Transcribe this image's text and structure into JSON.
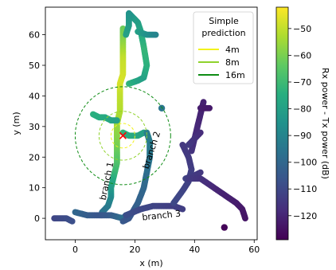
{
  "chart_data": {
    "type": "scatter",
    "title": "",
    "xlabel": "x (m)",
    "ylabel": "y (m)",
    "xlim": [
      -10,
      61
    ],
    "ylim": [
      -7,
      69
    ],
    "xticks": [
      0,
      20,
      40,
      60
    ],
    "yticks": [
      0,
      10,
      20,
      30,
      40,
      50,
      60
    ],
    "colorbar": {
      "label": "Rx power - Tx power (dB)",
      "range": [
        -129,
        -42
      ],
      "ticks": [
        -50,
        -60,
        -70,
        -80,
        -90,
        -100,
        -110,
        -120
      ],
      "colormap": "viridis"
    },
    "trajectories": [
      {
        "points": [
          [
            16,
            62,
            -62
          ],
          [
            16,
            57,
            -57
          ],
          [
            16,
            52,
            -50
          ],
          [
            16,
            47,
            -48
          ],
          [
            15,
            44,
            -47
          ],
          [
            15,
            40,
            -50
          ],
          [
            15,
            35,
            -52
          ],
          [
            14,
            31,
            -55
          ],
          [
            14,
            26,
            -58
          ],
          [
            14,
            22,
            -62
          ],
          [
            14,
            18,
            -66
          ],
          [
            13,
            14,
            -72
          ],
          [
            12,
            10,
            -80
          ],
          [
            12,
            7,
            -86
          ],
          [
            11,
            4,
            -92
          ],
          [
            9,
            2,
            -96
          ]
        ]
      },
      {
        "points": [
          [
            18,
            44,
            -72
          ],
          [
            21,
            45,
            -78
          ],
          [
            23,
            46,
            -80
          ],
          [
            24,
            50,
            -74
          ],
          [
            23,
            56,
            -72
          ],
          [
            22,
            61,
            -76
          ],
          [
            21,
            64,
            -80
          ],
          [
            19,
            66,
            -82
          ],
          [
            18,
            67,
            -85
          ],
          [
            18,
            63,
            -82
          ],
          [
            17,
            60,
            -80
          ]
        ]
      },
      {
        "points": [
          [
            21,
            61,
            -80
          ],
          [
            24,
            60,
            -85
          ],
          [
            27,
            60,
            -90
          ]
        ]
      },
      {
        "points": [
          [
            6,
            34,
            -74
          ],
          [
            8,
            33,
            -75
          ],
          [
            10,
            33,
            -76
          ],
          [
            12,
            32,
            -78
          ],
          [
            14,
            32,
            -80
          ]
        ]
      },
      {
        "points": [
          [
            16,
            28,
            -72
          ],
          [
            18,
            27,
            -75
          ],
          [
            21,
            27,
            -78
          ],
          [
            23,
            28,
            -80
          ]
        ]
      },
      {
        "points": [
          [
            0,
            2,
            -100
          ],
          [
            4,
            1,
            -103
          ],
          [
            8,
            1,
            -106
          ],
          [
            12,
            1,
            -104
          ],
          [
            16,
            0,
            -98
          ],
          [
            17,
            1,
            -96
          ]
        ]
      },
      {
        "points": [
          [
            16,
            -1,
            -105
          ],
          [
            18,
            0,
            -106
          ],
          [
            21,
            5,
            -102
          ],
          [
            23,
            10,
            -100
          ],
          [
            24,
            15,
            -98
          ],
          [
            25,
            20,
            -95
          ],
          [
            25,
            25,
            -93
          ],
          [
            24,
            28,
            -92
          ]
        ]
      },
      {
        "points": [
          [
            17,
            1,
            -108
          ],
          [
            22,
            3,
            -110
          ],
          [
            26,
            4,
            -111
          ],
          [
            30,
            4,
            -112
          ],
          [
            33,
            4,
            -113
          ],
          [
            36,
            3,
            -113
          ]
        ]
      },
      {
        "points": [
          [
            -7,
            0,
            -111
          ],
          [
            -5,
            0,
            -110
          ],
          [
            -3,
            0,
            -109
          ],
          [
            -1,
            -1,
            -108
          ]
        ]
      },
      {
        "points": [
          [
            33,
            5,
            -110
          ],
          [
            36,
            9,
            -111
          ],
          [
            38,
            12,
            -112
          ],
          [
            39,
            16,
            -113
          ],
          [
            38,
            20,
            -114
          ],
          [
            36,
            24,
            -115
          ]
        ]
      },
      {
        "points": [
          [
            37,
            13,
            -112
          ],
          [
            40,
            14,
            -114
          ],
          [
            42,
            15,
            -115
          ]
        ]
      },
      {
        "points": [
          [
            39,
            22,
            -116
          ],
          [
            40,
            26,
            -118
          ],
          [
            41,
            30,
            -119
          ],
          [
            42,
            34,
            -120
          ],
          [
            43,
            38,
            -121
          ]
        ]
      },
      {
        "points": [
          [
            38,
            24,
            -114
          ],
          [
            40,
            26,
            -116
          ],
          [
            42,
            28,
            -118
          ]
        ]
      },
      {
        "points": [
          [
            38,
            13,
            -114
          ],
          [
            42,
            13,
            -116
          ],
          [
            45,
            11,
            -118
          ],
          [
            48,
            9,
            -120
          ],
          [
            51,
            7,
            -121
          ],
          [
            54,
            5,
            -122
          ],
          [
            56,
            3,
            -123
          ],
          [
            57,
            0,
            -124
          ]
        ]
      },
      {
        "points": [
          [
            42,
            36,
            -122
          ],
          [
            45,
            36,
            -123
          ]
        ]
      },
      {
        "points": [
          [
            29,
            36,
            -95
          ]
        ]
      },
      {
        "points": [
          [
            50,
            -3,
            -128
          ]
        ]
      }
    ],
    "tx_location": {
      "x": 16,
      "y": 27
    },
    "legend": {
      "title": "Simple\nprediction",
      "placement": "top-right",
      "entries": [
        {
          "label": "4m",
          "radius": 4,
          "color": "#f2f21c"
        },
        {
          "label": "8m",
          "radius": 8,
          "color": "#8fd22c"
        },
        {
          "label": "16m",
          "radius": 16,
          "color": "#0e8c14"
        }
      ]
    },
    "annotations": [
      {
        "text": "branch 1",
        "x": 11.5,
        "y": 12,
        "rotation": -78
      },
      {
        "text": "branch 2",
        "x": 26.5,
        "y": 22,
        "rotation": -72
      },
      {
        "text": "branch 3",
        "x": 29,
        "y": 0,
        "rotation": -6
      }
    ]
  }
}
